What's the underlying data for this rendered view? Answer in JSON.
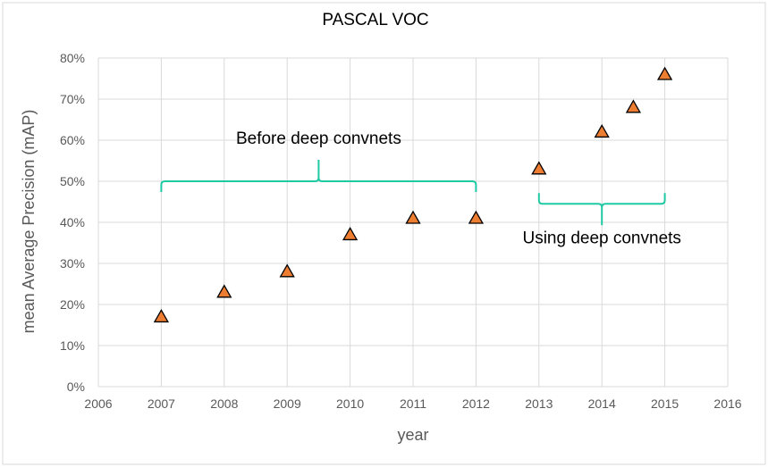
{
  "chart_data": {
    "type": "scatter",
    "title": "PASCAL VOC",
    "xlabel": "year",
    "ylabel": "mean Average Precision (mAP)",
    "xlim": [
      2006,
      2016
    ],
    "ylim": [
      0,
      0.8
    ],
    "x_ticks": [
      2006,
      2007,
      2008,
      2009,
      2010,
      2011,
      2012,
      2013,
      2014,
      2015,
      2016
    ],
    "x_tick_labels": [
      "2006",
      "2007",
      "2008",
      "2009",
      "2010",
      "2011",
      "2012",
      "2013",
      "2014",
      "2015",
      "2016"
    ],
    "y_ticks": [
      0,
      0.1,
      0.2,
      0.3,
      0.4,
      0.5,
      0.6,
      0.7,
      0.8
    ],
    "y_tick_labels": [
      "0%",
      "10%",
      "20%",
      "30%",
      "40%",
      "50%",
      "60%",
      "70%",
      "80%"
    ],
    "grid": true,
    "marker": "triangle",
    "marker_color": "#ED7D31",
    "bracket_color": "#1FC9A3",
    "points": [
      {
        "x": 2007,
        "y": 0.17
      },
      {
        "x": 2008,
        "y": 0.23
      },
      {
        "x": 2009,
        "y": 0.28
      },
      {
        "x": 2010,
        "y": 0.37
      },
      {
        "x": 2011,
        "y": 0.41
      },
      {
        "x": 2012,
        "y": 0.41
      },
      {
        "x": 2013,
        "y": 0.53
      },
      {
        "x": 2014,
        "y": 0.62
      },
      {
        "x": 2014.5,
        "y": 0.68
      },
      {
        "x": 2015,
        "y": 0.76
      }
    ],
    "annotations": [
      {
        "text": "Before deep convnets",
        "x_start": 2007,
        "x_end": 2012,
        "y": 0.5,
        "direction": "up"
      },
      {
        "text": "Using deep convnets",
        "x_start": 2013,
        "x_end": 2015,
        "y": 0.445,
        "direction": "down"
      }
    ]
  }
}
